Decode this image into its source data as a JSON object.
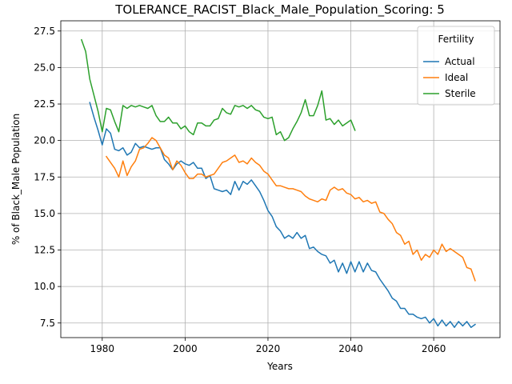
{
  "chart_data": {
    "type": "line",
    "title": "TOLERANCE_RACIST_Black_Male_Population_Scoring: 5",
    "xlabel": "Years",
    "ylabel": "% of Black_Male Population",
    "xlim": [
      1970,
      2076
    ],
    "ylim": [
      6.5,
      28.2
    ],
    "xticks": [
      1980,
      2000,
      2020,
      2040,
      2060
    ],
    "yticks": [
      7.5,
      10.0,
      12.5,
      15.0,
      17.5,
      20.0,
      22.5,
      25.0,
      27.5
    ],
    "grid": true,
    "legend": {
      "title": "Fertility",
      "placement": "top-right"
    },
    "series": [
      {
        "name": "Actual",
        "color": "#1f77b4",
        "x": [
          1977,
          1978,
          1979,
          1980,
          1981,
          1982,
          1983,
          1984,
          1985,
          1986,
          1987,
          1988,
          1989,
          1990,
          1991,
          1992,
          1993,
          1994,
          1995,
          1996,
          1997,
          1998,
          1999,
          2000,
          2001,
          2002,
          2003,
          2004,
          2005,
          2006,
          2007,
          2008,
          2009,
          2010,
          2011,
          2012,
          2013,
          2014,
          2015,
          2016,
          2017,
          2018,
          2019,
          2020,
          2021,
          2022,
          2023,
          2024,
          2025,
          2026,
          2027,
          2028,
          2029,
          2030,
          2031,
          2032,
          2033,
          2034,
          2035,
          2036,
          2037,
          2038,
          2039,
          2040,
          2041,
          2042,
          2043,
          2044,
          2045,
          2046,
          2047,
          2048,
          2049,
          2050,
          2051,
          2052,
          2053,
          2054,
          2055,
          2056,
          2057,
          2058,
          2059,
          2060,
          2061,
          2062,
          2063,
          2064,
          2065,
          2066,
          2067,
          2068,
          2069,
          2070
        ],
        "values": [
          22.6,
          21.6,
          20.7,
          19.7,
          20.8,
          20.5,
          19.4,
          19.3,
          19.5,
          19.0,
          19.2,
          19.8,
          19.5,
          19.6,
          19.5,
          19.4,
          19.5,
          19.5,
          18.7,
          18.4,
          18.0,
          18.4,
          18.6,
          18.4,
          18.3,
          18.5,
          18.1,
          18.1,
          17.4,
          17.6,
          16.7,
          16.6,
          16.5,
          16.6,
          16.3,
          17.2,
          16.6,
          17.2,
          17.0,
          17.3,
          16.9,
          16.5,
          15.9,
          15.2,
          14.8,
          14.1,
          13.8,
          13.3,
          13.5,
          13.3,
          13.7,
          13.3,
          13.5,
          12.6,
          12.7,
          12.4,
          12.2,
          12.1,
          11.6,
          11.8,
          11.0,
          11.6,
          10.9,
          11.7,
          11.0,
          11.7,
          11.0,
          11.6,
          11.1,
          11.0,
          10.5,
          10.1,
          9.7,
          9.2,
          9.0,
          8.5,
          8.5,
          8.1,
          8.1,
          7.9,
          7.8,
          7.9,
          7.5,
          7.8,
          7.3,
          7.7,
          7.3,
          7.6,
          7.2,
          7.6,
          7.3,
          7.6,
          7.2,
          7.4
        ]
      },
      {
        "name": "Ideal",
        "color": "#ff7f0e",
        "x": [
          1981,
          1982,
          1983,
          1984,
          1985,
          1986,
          1987,
          1988,
          1989,
          1990,
          1991,
          1992,
          1993,
          1994,
          1995,
          1996,
          1997,
          1998,
          1999,
          2000,
          2001,
          2002,
          2003,
          2004,
          2005,
          2006,
          2007,
          2008,
          2009,
          2010,
          2011,
          2012,
          2013,
          2014,
          2015,
          2016,
          2017,
          2018,
          2019,
          2020,
          2021,
          2022,
          2023,
          2024,
          2025,
          2026,
          2027,
          2028,
          2029,
          2030,
          2031,
          2032,
          2033,
          2034,
          2035,
          2036,
          2037,
          2038,
          2039,
          2040,
          2041,
          2042,
          2043,
          2044,
          2045,
          2046,
          2047,
          2048,
          2049,
          2050,
          2051,
          2052,
          2053,
          2054,
          2055,
          2056,
          2057,
          2058,
          2059,
          2060,
          2061,
          2062,
          2063,
          2064,
          2065,
          2066,
          2067,
          2068,
          2069,
          2070
        ],
        "values": [
          18.9,
          18.5,
          18.1,
          17.5,
          18.6,
          17.6,
          18.2,
          18.6,
          19.4,
          19.5,
          19.8,
          20.2,
          20.0,
          19.5,
          19.0,
          18.8,
          18.0,
          18.6,
          18.3,
          17.8,
          17.4,
          17.4,
          17.7,
          17.7,
          17.5,
          17.6,
          17.7,
          18.1,
          18.5,
          18.6,
          18.8,
          19.0,
          18.5,
          18.6,
          18.4,
          18.8,
          18.5,
          18.3,
          17.9,
          17.7,
          17.3,
          16.9,
          16.9,
          16.8,
          16.7,
          16.7,
          16.6,
          16.5,
          16.2,
          16.0,
          15.9,
          15.8,
          16.0,
          15.9,
          16.6,
          16.8,
          16.6,
          16.7,
          16.4,
          16.3,
          16.0,
          16.1,
          15.8,
          15.9,
          15.7,
          15.8,
          15.1,
          15.0,
          14.6,
          14.3,
          13.7,
          13.5,
          12.9,
          13.1,
          12.2,
          12.5,
          11.8,
          12.2,
          12.0,
          12.5,
          12.2,
          12.9,
          12.4,
          12.6,
          12.4,
          12.2,
          12.0,
          11.3,
          11.2,
          10.4
        ]
      },
      {
        "name": "Sterile",
        "color": "#2ca02c",
        "x": [
          1975,
          1976,
          1977,
          1978,
          1979,
          1980,
          1981,
          1982,
          1983,
          1984,
          1985,
          1986,
          1987,
          1988,
          1989,
          1990,
          1991,
          1992,
          1993,
          1994,
          1995,
          1996,
          1997,
          1998,
          1999,
          2000,
          2001,
          2002,
          2003,
          2004,
          2005,
          2006,
          2007,
          2008,
          2009,
          2010,
          2011,
          2012,
          2013,
          2014,
          2015,
          2016,
          2017,
          2018,
          2019,
          2020,
          2021,
          2022,
          2023,
          2024,
          2025,
          2026,
          2027,
          2028,
          2029,
          2030,
          2031,
          2032,
          2033,
          2034,
          2035,
          2036,
          2037,
          2038,
          2039,
          2040,
          2041
        ],
        "values": [
          26.9,
          26.1,
          24.2,
          23.1,
          22.0,
          20.6,
          22.2,
          22.1,
          21.3,
          20.6,
          22.4,
          22.2,
          22.4,
          22.3,
          22.4,
          22.3,
          22.2,
          22.4,
          21.7,
          21.3,
          21.3,
          21.6,
          21.2,
          21.2,
          20.8,
          21.0,
          20.6,
          20.4,
          21.2,
          21.2,
          21.0,
          21.0,
          21.4,
          21.5,
          22.2,
          21.9,
          21.8,
          22.4,
          22.3,
          22.4,
          22.2,
          22.4,
          22.1,
          22.0,
          21.6,
          21.5,
          21.6,
          20.4,
          20.6,
          20.0,
          20.2,
          20.8,
          21.3,
          21.9,
          22.8,
          21.7,
          21.7,
          22.4,
          23.4,
          21.4,
          21.5,
          21.1,
          21.4,
          21.0,
          21.2,
          21.4,
          20.7
        ]
      }
    ]
  }
}
